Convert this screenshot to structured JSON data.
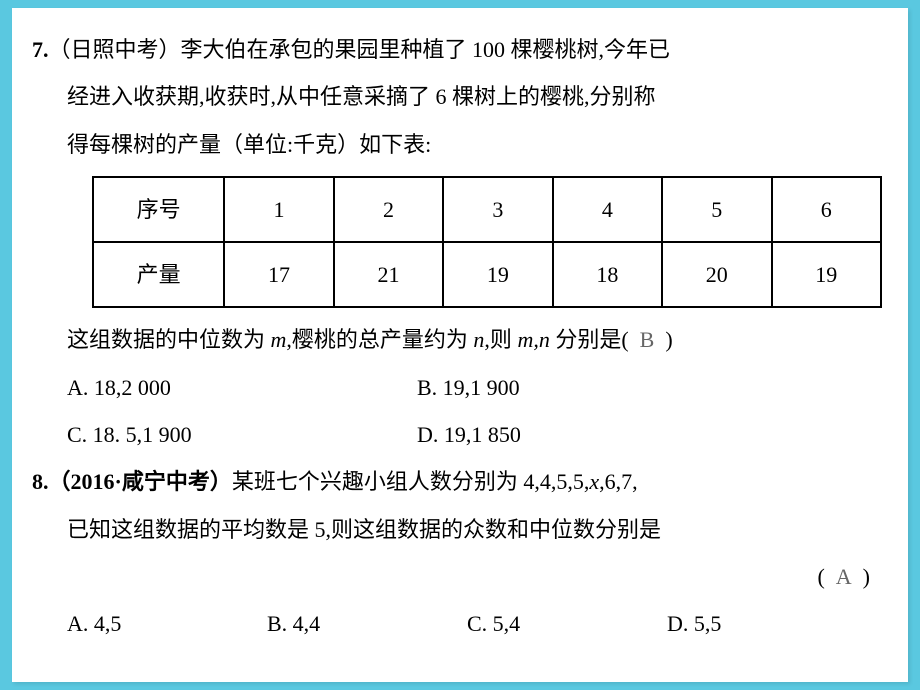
{
  "q7": {
    "number": "7.",
    "source": "（日照中考）",
    "line1": "李大伯在承包的果园里种植了 100 棵樱桃树,今年已",
    "line2": "经进入收获期,收获时,从中任意采摘了 6 棵树上的樱桃,分别称",
    "line3": "得每棵树的产量（单位:千克）如下表:",
    "table": {
      "header_label": "序号",
      "headers": [
        "1",
        "2",
        "3",
        "4",
        "5",
        "6"
      ],
      "row_label": "产量",
      "values": [
        "17",
        "21",
        "19",
        "18",
        "20",
        "19"
      ]
    },
    "line4a": "这组数据的中位数为 ",
    "line4b": ",樱桃的总产量约为 ",
    "line4c": ",则 ",
    "line4d": " 分别是(",
    "answer": "B",
    "line4e": ")",
    "m": "m",
    "n": "n",
    "mn": "m,n",
    "options": {
      "a": "A. 18,2 000",
      "b": "B. 19,1 900",
      "c": "C. 18. 5,1 900",
      "d": "D. 19,1 850"
    }
  },
  "q8": {
    "number": "8.",
    "source": "（2016·咸宁中考）",
    "line1a": "某班七个兴趣小组人数分别为 4,4,5,5,",
    "x": "x",
    "line1b": ",6,7,",
    "line2": "已知这组数据的平均数是 5,则这组数据的众数和中位数分别是",
    "paren_open": "(",
    "answer": "A",
    "paren_close": ")",
    "options": {
      "a": "A. 4,5",
      "b": "B. 4,4",
      "c": "C. 5,4",
      "d": "D. 5,5"
    }
  }
}
